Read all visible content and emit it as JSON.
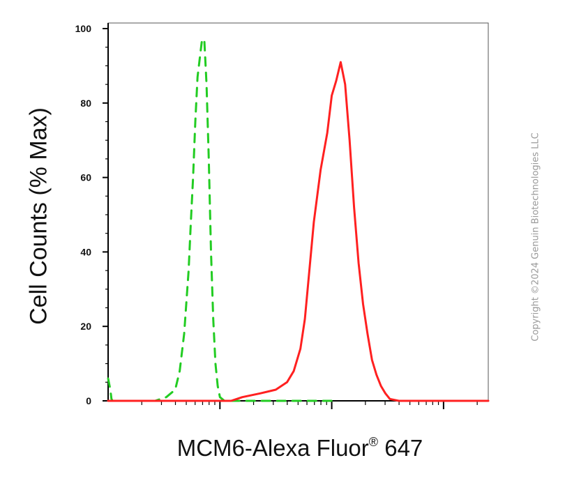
{
  "chart_data": {
    "type": "line",
    "xlabel_main": "MCM6-Alexa Fluor",
    "xlabel_reg": "®",
    "xlabel_tail": " 647",
    "ylabel": "Cell Counts (% Max)",
    "ylim": [
      0,
      100
    ],
    "yticks": [
      0,
      20,
      40,
      60,
      80,
      100
    ],
    "xscale": "log",
    "grid": false,
    "series": [
      {
        "style": "dashed",
        "color": "#22cc22",
        "x": [
          0.0,
          0.01,
          0.015,
          0.02,
          0.21,
          0.26,
          0.3,
          0.32,
          0.34,
          0.36,
          0.37,
          0.38,
          0.39,
          0.4,
          0.41,
          0.42,
          0.43,
          0.44,
          0.45,
          0.46,
          0.47,
          0.48,
          0.49,
          0.5,
          0.52,
          0.55,
          0.6,
          0.7,
          0.85,
          1.0
        ],
        "values": [
          6,
          3,
          0.5,
          0,
          0,
          1,
          3,
          8,
          18,
          35,
          48,
          60,
          75,
          87,
          92,
          97,
          97,
          85,
          65,
          40,
          22,
          10,
          4,
          1,
          0,
          0,
          0,
          0,
          0,
          0
        ]
      },
      {
        "style": "solid",
        "color": "#ff2020",
        "x": [
          0.0,
          0.55,
          0.6,
          0.68,
          0.75,
          0.8,
          0.83,
          0.85,
          0.86,
          0.88,
          0.9,
          0.92,
          0.95,
          0.98,
          1.0,
          1.02,
          1.04,
          1.06,
          1.08,
          1.1,
          1.12,
          1.14,
          1.16,
          1.18,
          1.2,
          1.22,
          1.24,
          1.26,
          1.3,
          1.35,
          1.4,
          1.5,
          1.6,
          1.7
        ],
        "values": [
          0,
          0,
          1,
          2,
          3,
          5,
          8,
          12,
          14,
          22,
          35,
          48,
          62,
          72,
          82,
          86,
          91,
          85,
          70,
          52,
          37,
          26,
          18,
          11,
          7,
          4,
          2,
          0.5,
          0,
          0,
          0,
          0,
          0,
          0
        ]
      }
    ]
  },
  "copyright": "Copyright ©2024 Genuin Biotechnologies LLC"
}
